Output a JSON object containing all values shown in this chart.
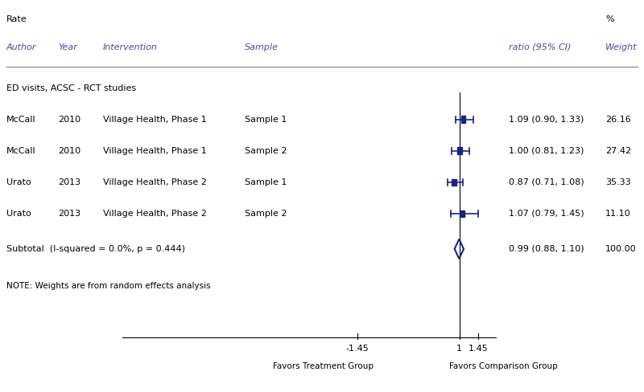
{
  "title": "",
  "header_rate": "Rate",
  "header_pct": "%",
  "header_author": "Author",
  "header_year": "Year",
  "header_intervention": "Intervention",
  "header_sample": "Sample",
  "header_ratio": "ratio (95% CI)",
  "header_weight": "Weight",
  "section_label": "ED visits, ACSC - RCT studies",
  "studies": [
    {
      "author": "McCall",
      "year": "2010",
      "intervention": "Village Health, Phase 1",
      "sample": "Sample 1",
      "rr": 1.09,
      "ci_lo": 0.9,
      "ci_hi": 1.33,
      "weight": "26.16"
    },
    {
      "author": "McCall",
      "year": "2010",
      "intervention": "Village Health, Phase 1",
      "sample": "Sample 2",
      "rr": 1.0,
      "ci_lo": 0.81,
      "ci_hi": 1.23,
      "weight": "27.42"
    },
    {
      "author": "Urato",
      "year": "2013",
      "intervention": "Village Health, Phase 2",
      "sample": "Sample 1",
      "rr": 0.87,
      "ci_lo": 0.71,
      "ci_hi": 1.08,
      "weight": "35.33"
    },
    {
      "author": "Urato",
      "year": "2013",
      "intervention": "Village Health, Phase 2",
      "sample": "Sample 2",
      "rr": 1.07,
      "ci_lo": 0.79,
      "ci_hi": 1.45,
      "weight": "11.10"
    }
  ],
  "subtotal": {
    "label": "Subtotal  (I-squared = 0.0%, p = 0.444)",
    "rr": 0.99,
    "ci_lo": 0.88,
    "ci_hi": 1.1,
    "weight": "100.00"
  },
  "note": "NOTE: Weights are from random effects analysis",
  "xmin": -1.45,
  "xmax": 1.95,
  "x_axis_ticks": [
    -1.45,
    1,
    1.45
  ],
  "x_axis_labels": [
    "-1.45",
    "1",
    "1.45"
  ],
  "null_line": 1.0,
  "favors_left": "Favors Treatment Group",
  "favors_right": "Favors Comparison Group",
  "plot_color": "#1a237e",
  "text_color": "#000000",
  "label_color": "#4a4a9a",
  "bg_color": "#ffffff"
}
